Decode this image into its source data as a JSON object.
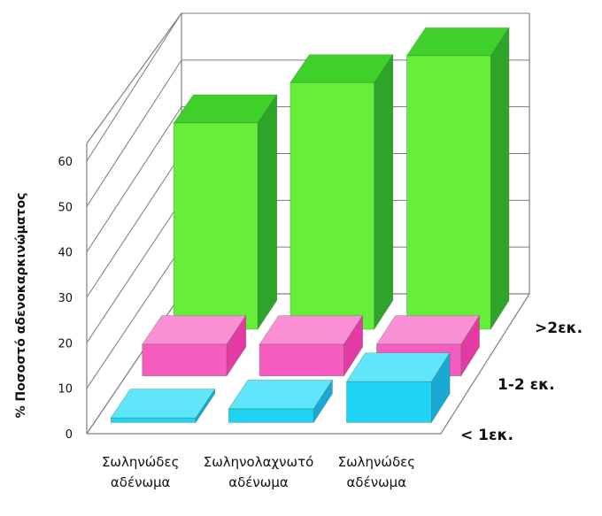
{
  "chart_data": {
    "type": "bar",
    "title": "",
    "ylabel": "% Ποσοστό αδενοκαρκινώματος",
    "ylim": [
      0,
      60
    ],
    "yticks": [
      "0",
      "10",
      "20",
      "30",
      "40",
      "50",
      "60"
    ],
    "categories": [
      [
        "Σωληνώδες",
        "αδένωμα"
      ],
      [
        "Σωληνολαχνωτό",
        "αδένωμα"
      ],
      [
        "Σωληνώδες",
        "αδένωμα"
      ]
    ],
    "series": [
      {
        "name": "< 1εκ.",
        "values": [
          1,
          3,
          9
        ]
      },
      {
        "name": "1-2 εκ.",
        "values": [
          7,
          7,
          7
        ]
      },
      {
        "name": ">2εκ.",
        "values": [
          46,
          55,
          61
        ]
      }
    ],
    "colors": {
      "series_front": [
        "#1fd3f5",
        "#f75cc0",
        "#66ee3a"
      ],
      "series_top": [
        "#5fe6fb",
        "#fb8fd6",
        "#3fd02a"
      ],
      "series_side": [
        "#18a9d6",
        "#e53aa6",
        "#2ea52a"
      ],
      "grid": "#7a7a7a",
      "frame": "#808080"
    },
    "grid": true,
    "projection": "3d-depth"
  }
}
